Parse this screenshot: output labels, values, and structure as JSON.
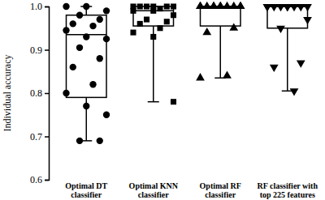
{
  "chart_data": {
    "type": "box",
    "y_label": "Individual accuracy",
    "categories": [
      "Optimal DT classifier",
      "Optimal KNN classifier",
      "Optimal RF classifier",
      "RF classifier with top 225 features"
    ],
    "ylim": [
      0.6,
      1.0
    ],
    "yticks": [
      0.6,
      0.7,
      0.8,
      0.9,
      {
        "value": 1.0,
        "label": "1.0"
      }
    ],
    "boxes": [
      {
        "marker": "circle",
        "color": "#000000",
        "min": 0.69,
        "q1": 0.79,
        "median": 0.935,
        "q3": 0.98,
        "max": 1.0,
        "points": [
          1.0,
          1.0,
          0.99,
          0.98,
          0.97,
          0.96,
          0.955,
          0.945,
          0.93,
          0.925,
          0.905,
          0.88,
          0.86,
          0.82,
          0.8,
          0.77,
          0.75,
          0.69,
          0.69
        ]
      },
      {
        "marker": "square",
        "color": "#000000",
        "min": 0.78,
        "q1": 0.955,
        "median": 0.99,
        "q3": 1.0,
        "max": 1.0,
        "points": [
          1.0,
          1.0,
          1.0,
          1.0,
          1.0,
          1.0,
          0.995,
          0.99,
          0.99,
          0.98,
          0.97,
          0.965,
          0.96,
          0.95,
          0.94,
          0.93,
          0.78
        ]
      },
      {
        "marker": "triangle-up",
        "color": "#000000",
        "min": 0.835,
        "q1": 0.955,
        "median": 1.0,
        "q3": 1.0,
        "max": 1.0,
        "points": [
          1.0,
          1.0,
          1.0,
          1.0,
          1.0,
          1.0,
          1.0,
          1.0,
          1.0,
          1.0,
          1.0,
          0.95,
          0.94,
          0.84,
          0.835
        ]
      },
      {
        "marker": "triangle-down",
        "color": "#000000",
        "min": 0.805,
        "q1": 0.95,
        "median": 1.0,
        "q3": 1.0,
        "max": 1.0,
        "points": [
          1.0,
          1.0,
          1.0,
          1.0,
          1.0,
          1.0,
          1.0,
          1.0,
          1.0,
          0.97,
          0.95,
          0.87,
          0.86,
          0.805
        ]
      }
    ]
  }
}
